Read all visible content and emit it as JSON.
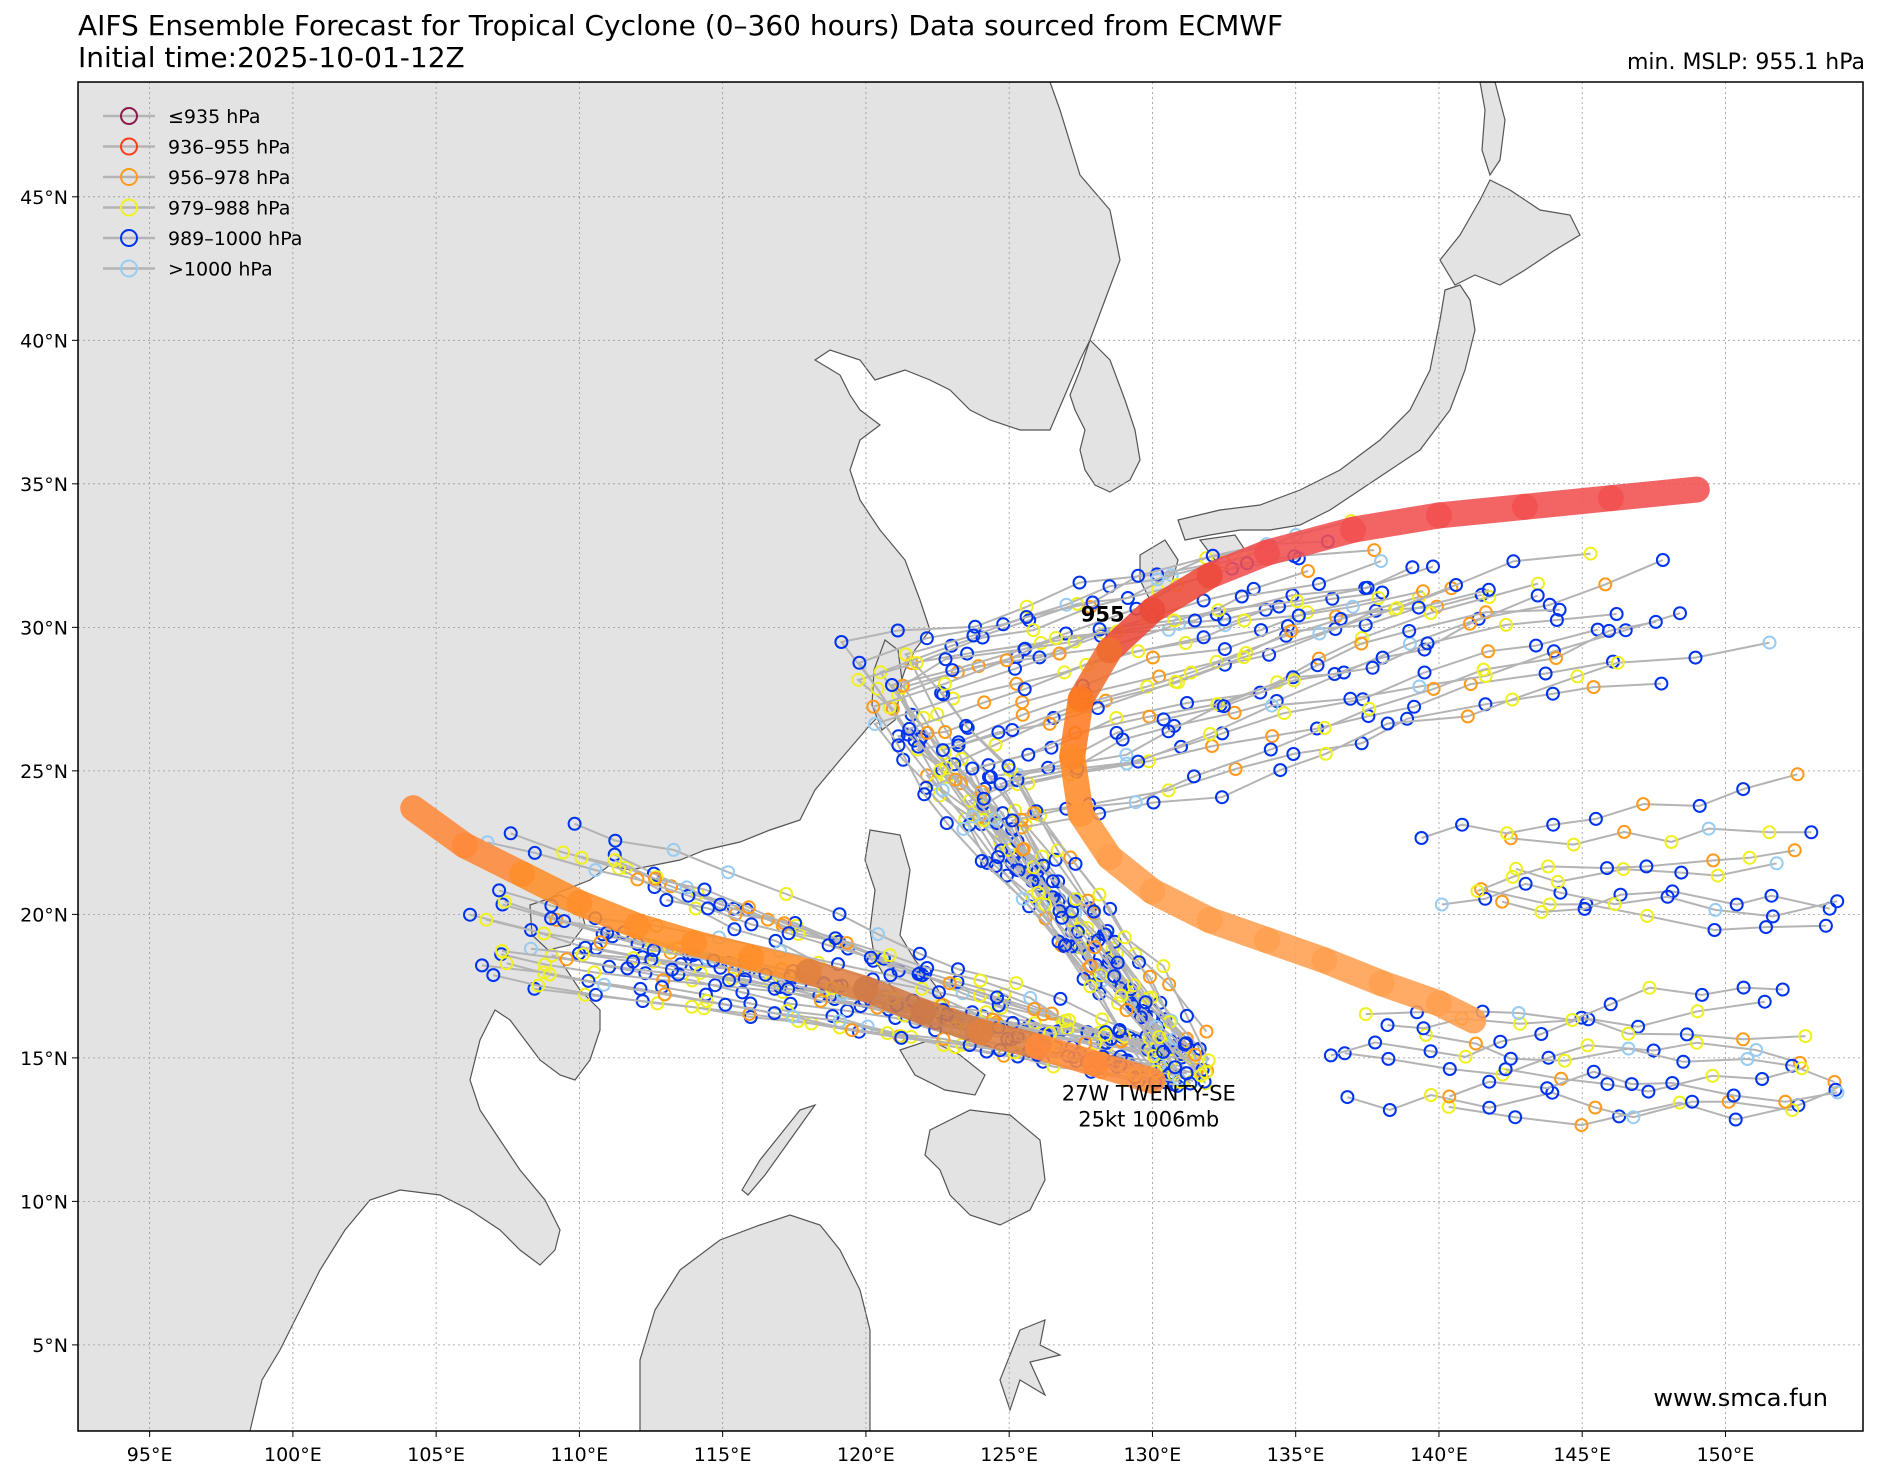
{
  "header": {
    "title_line1": "AIFS Ensemble Forecast for Tropical Cyclone (0–360 hours) Data sourced from ECMWF",
    "title_line2": "Initial time:2025-10-01-12Z",
    "min_mslp": "min. MSLP: 955.1 hPa"
  },
  "map": {
    "lon_range": [
      92.5,
      154.8
    ],
    "lat_range": [
      2.0,
      49.0
    ],
    "land_color": "#e3e3e3",
    "coast_color": "#555555",
    "grid": true,
    "lon_ticks": [
      {
        "value": 95,
        "label": "95°E"
      },
      {
        "value": 100,
        "label": "100°E"
      },
      {
        "value": 105,
        "label": "105°E"
      },
      {
        "value": 110,
        "label": "110°E"
      },
      {
        "value": 115,
        "label": "115°E"
      },
      {
        "value": 120,
        "label": "120°E"
      },
      {
        "value": 125,
        "label": "125°E"
      },
      {
        "value": 130,
        "label": "130°E"
      },
      {
        "value": 135,
        "label": "135°E"
      },
      {
        "value": 140,
        "label": "140°E"
      },
      {
        "value": 145,
        "label": "145°E"
      },
      {
        "value": 150,
        "label": "150°E"
      }
    ],
    "lat_ticks": [
      {
        "value": 5,
        "label": "5°N"
      },
      {
        "value": 10,
        "label": "10°N"
      },
      {
        "value": 15,
        "label": "15°N"
      },
      {
        "value": 20,
        "label": "20°N"
      },
      {
        "value": 25,
        "label": "25°N"
      },
      {
        "value": 30,
        "label": "30°N"
      },
      {
        "value": 35,
        "label": "35°N"
      },
      {
        "value": 40,
        "label": "40°N"
      },
      {
        "value": 45,
        "label": "45°N"
      }
    ]
  },
  "legend": {
    "placement": "top-left",
    "entries": [
      {
        "label": "≤935 hPa",
        "color": "#8b1a4a"
      },
      {
        "label": "936–955 hPa",
        "color": "#ff3b1a"
      },
      {
        "label": "956–978 hPa",
        "color": "#ff9a1a"
      },
      {
        "label": "979–988 hPa",
        "color": "#f0f020"
      },
      {
        "label": "989–1000 hPa",
        "color": "#0033ee"
      },
      {
        "label": ">1000 hPa",
        "color": "#99ccf2"
      }
    ]
  },
  "chart_data": {
    "type": "scatter",
    "ensemble_track_color": "#b4b4b4",
    "mean_tracks": [
      {
        "points": [
          [
            104.2,
            23.7
          ],
          [
            106,
            22.4
          ],
          [
            108,
            21.4
          ],
          [
            110,
            20.4
          ],
          [
            112,
            19.6
          ],
          [
            114,
            19.0
          ],
          [
            116,
            18.5
          ],
          [
            118,
            18.0
          ],
          [
            120,
            17.4
          ],
          [
            122,
            16.6
          ],
          [
            124,
            15.9
          ],
          [
            126,
            15.4
          ],
          [
            128,
            14.8
          ],
          [
            130,
            14.2
          ]
        ],
        "colors": [
          "#ff8a3a",
          "#ff8a3a",
          "#ff8f2a",
          "#ff8f2a",
          "#ff8f2a",
          "#ff8f2a",
          "#ff8f2a",
          "#e08040",
          "#d07a48",
          "#d07a48",
          "#e08040",
          "#ff8a3a",
          "#ff8a3a",
          "#ff8a3a"
        ]
      },
      {
        "points": [
          [
            149,
            34.8
          ],
          [
            146,
            34.5
          ],
          [
            143,
            34.2
          ],
          [
            140,
            33.9
          ],
          [
            137,
            33.4
          ],
          [
            134,
            32.6
          ],
          [
            132,
            31.8
          ],
          [
            130,
            30.6
          ],
          [
            128.5,
            29.2
          ],
          [
            127.5,
            27.5
          ],
          [
            127.2,
            25.5
          ],
          [
            127.5,
            23.5
          ],
          [
            128.5,
            22.0
          ],
          [
            130,
            20.8
          ],
          [
            132,
            19.8
          ],
          [
            134,
            19.1
          ],
          [
            136,
            18.4
          ],
          [
            138,
            17.6
          ],
          [
            140,
            16.9
          ],
          [
            141.2,
            16.3
          ]
        ],
        "colors": [
          "#f25050",
          "#f25050",
          "#f25050",
          "#f25050",
          "#f25050",
          "#f25050",
          "#ec4a3a",
          "#ec4a3a",
          "#f07030",
          "#ff7a20",
          "#ff8a2a",
          "#ff9a40",
          "#ffa050",
          "#ffa050",
          "#ffa050",
          "#ffa050",
          "#ffa050",
          "#ffa050",
          "#ffa050",
          "#ffa050"
        ]
      }
    ],
    "min_mslp_marker": {
      "lon": 127.5,
      "lat": 30.2,
      "label": "955"
    },
    "storm_label": {
      "lon": 130.5,
      "lat": 13.3,
      "line1": "27W TWENTY-SE",
      "line2": "25kt 1006mb"
    }
  },
  "credit": "www.smca.fun"
}
